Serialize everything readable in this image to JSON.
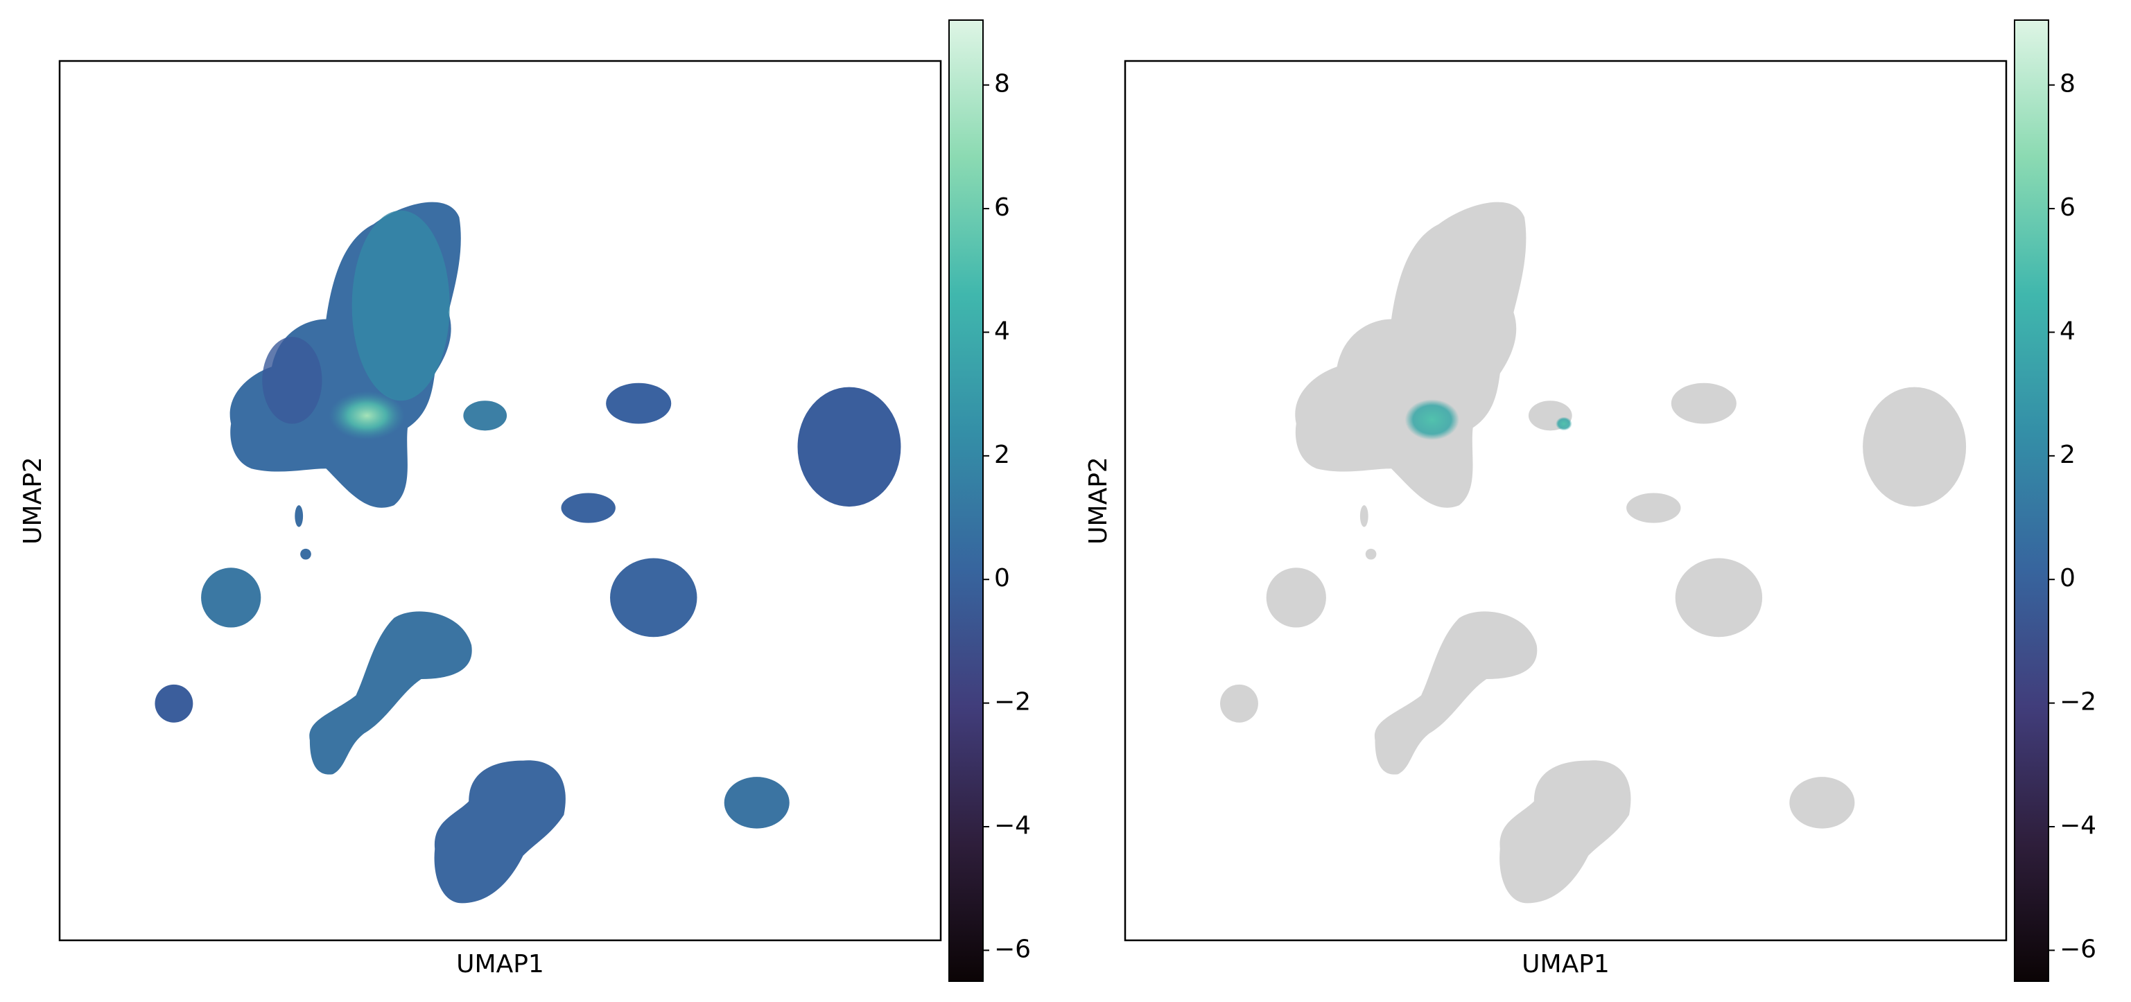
{
  "chart_data": [
    {
      "type": "scatter",
      "xlabel": "UMAP1",
      "ylabel": "UMAP2",
      "colorbar": {
        "lim": [
          -6.5,
          9.05
        ],
        "ticks": [
          {
            "value": -6,
            "label": "−6"
          },
          {
            "value": -4,
            "label": "−4"
          },
          {
            "value": -2,
            "label": "−2"
          },
          0,
          2,
          4,
          6,
          8
        ],
        "colormap": [
          "#0b0405",
          "#2e1e3b",
          "#413d7b",
          "#37659e",
          "#348fa7",
          "#40b7ad",
          "#8bdab2",
          "#def5e5"
        ]
      }
    },
    {
      "type": "scatter",
      "xlabel": "UMAP1",
      "ylabel": "UMAP2",
      "colorbar": {
        "lim": [
          -6.5,
          9.05
        ],
        "ticks": [
          {
            "value": -6,
            "label": "−6"
          },
          {
            "value": -4,
            "label": "−4"
          },
          {
            "value": -2,
            "label": "−2"
          },
          0,
          2,
          4,
          6,
          8
        ],
        "colormap": [
          "#0b0405",
          "#2e1e3b",
          "#413d7b",
          "#37659e",
          "#348fa7",
          "#40b7ad",
          "#8bdab2",
          "#def5e5"
        ]
      }
    }
  ]
}
